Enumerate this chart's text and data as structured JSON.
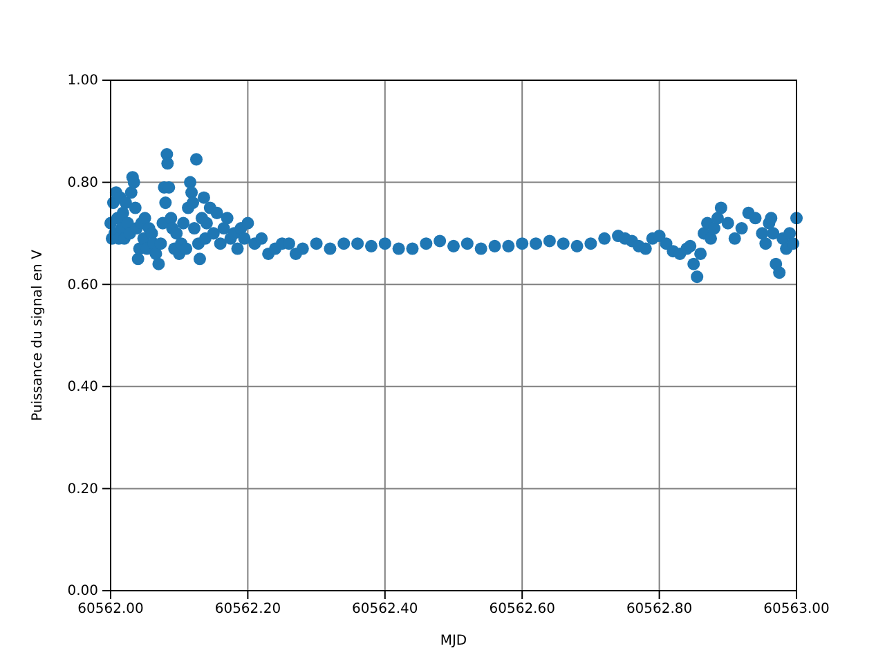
{
  "chart_data": {
    "type": "scatter",
    "xlabel": "MJD",
    "ylabel": "Puissance du signal en V",
    "x": [
      60562.0,
      60562.002,
      60562.004,
      60562.006,
      60562.008,
      60562.01,
      60562.012,
      60562.014,
      60562.016,
      60562.018,
      60562.02,
      60562.022,
      60562.025,
      60562.028,
      60562.03,
      60562.032,
      60562.034,
      60562.036,
      60562.038,
      60562.04,
      60562.042,
      60562.045,
      60562.048,
      60562.05,
      60562.053,
      60562.056,
      60562.06,
      60562.063,
      60562.066,
      60562.07,
      60562.073,
      60562.076,
      60562.078,
      60562.08,
      60562.082,
      60562.083,
      60562.085,
      60562.088,
      60562.09,
      60562.093,
      60562.096,
      60562.1,
      60562.103,
      60562.106,
      60562.11,
      60562.113,
      60562.116,
      60562.118,
      60562.12,
      60562.122,
      60562.125,
      60562.128,
      60562.13,
      60562.133,
      60562.136,
      60562.138,
      60562.14,
      60562.145,
      60562.15,
      60562.155,
      60562.16,
      60562.165,
      60562.17,
      60562.175,
      60562.18,
      60562.185,
      60562.19,
      60562.195,
      60562.2,
      60562.21,
      60562.22,
      60562.23,
      60562.24,
      60562.25,
      60562.26,
      60562.27,
      60562.28,
      60562.3,
      60562.32,
      60562.34,
      60562.36,
      60562.38,
      60562.4,
      60562.42,
      60562.44,
      60562.46,
      60562.48,
      60562.5,
      60562.52,
      60562.54,
      60562.56,
      60562.58,
      60562.6,
      60562.62,
      60562.64,
      60562.66,
      60562.68,
      60562.7,
      60562.72,
      60562.74,
      60562.75,
      60562.76,
      60562.77,
      60562.78,
      60562.79,
      60562.8,
      60562.81,
      60562.82,
      60562.83,
      60562.84,
      60562.845,
      60562.85,
      60562.855,
      60562.86,
      60562.865,
      60562.87,
      60562.875,
      60562.88,
      60562.885,
      60562.89,
      60562.9,
      60562.91,
      60562.92,
      60562.93,
      60562.94,
      60562.95,
      60562.955,
      60562.96,
      60562.963,
      60562.966,
      60562.97,
      60562.975,
      60562.98,
      60562.985,
      60562.99,
      60562.995,
      60563.0
    ],
    "values": [
      0.72,
      0.69,
      0.76,
      0.7,
      0.78,
      0.73,
      0.69,
      0.77,
      0.71,
      0.74,
      0.69,
      0.76,
      0.72,
      0.7,
      0.78,
      0.81,
      0.8,
      0.75,
      0.71,
      0.65,
      0.67,
      0.72,
      0.69,
      0.73,
      0.67,
      0.71,
      0.7,
      0.68,
      0.66,
      0.64,
      0.68,
      0.72,
      0.79,
      0.76,
      0.855,
      0.837,
      0.79,
      0.73,
      0.71,
      0.67,
      0.7,
      0.66,
      0.68,
      0.72,
      0.67,
      0.75,
      0.8,
      0.78,
      0.76,
      0.71,
      0.845,
      0.68,
      0.65,
      0.73,
      0.77,
      0.69,
      0.72,
      0.75,
      0.7,
      0.74,
      0.68,
      0.71,
      0.73,
      0.69,
      0.7,
      0.67,
      0.71,
      0.69,
      0.72,
      0.68,
      0.69,
      0.66,
      0.67,
      0.68,
      0.68,
      0.66,
      0.67,
      0.68,
      0.67,
      0.68,
      0.68,
      0.675,
      0.68,
      0.67,
      0.67,
      0.68,
      0.685,
      0.675,
      0.68,
      0.67,
      0.675,
      0.675,
      0.68,
      0.68,
      0.685,
      0.68,
      0.675,
      0.68,
      0.69,
      0.695,
      0.69,
      0.685,
      0.675,
      0.67,
      0.69,
      0.695,
      0.68,
      0.665,
      0.66,
      0.67,
      0.675,
      0.64,
      0.615,
      0.66,
      0.7,
      0.72,
      0.69,
      0.71,
      0.73,
      0.75,
      0.72,
      0.69,
      0.71,
      0.74,
      0.73,
      0.7,
      0.68,
      0.72,
      0.73,
      0.7,
      0.64,
      0.623,
      0.69,
      0.67,
      0.7,
      0.68,
      0.73
    ],
    "color": "#1f77b4",
    "marker": "circle",
    "xlim": [
      60562.0,
      60563.0
    ],
    "xticks": [
      {
        "value": 60562.0,
        "label": "60562.00"
      },
      {
        "value": 60562.2,
        "label": "60562.20"
      },
      {
        "value": 60562.4,
        "label": "60562.40"
      },
      {
        "value": 60562.6,
        "label": "60562.60"
      },
      {
        "value": 60562.8,
        "label": "60562.80"
      },
      {
        "value": 60563.0,
        "label": "60563.00"
      }
    ],
    "ylim": [
      0,
      1
    ],
    "yticks": [
      {
        "value": 0,
        "label": "0.00"
      },
      {
        "value": 0.2,
        "label": "0.20"
      },
      {
        "value": 0.4,
        "label": "0.40"
      },
      {
        "value": 0.6,
        "label": "0.60"
      },
      {
        "value": 0.8,
        "label": "0.80"
      },
      {
        "value": 1,
        "label": "1.00"
      }
    ],
    "grid": true
  }
}
